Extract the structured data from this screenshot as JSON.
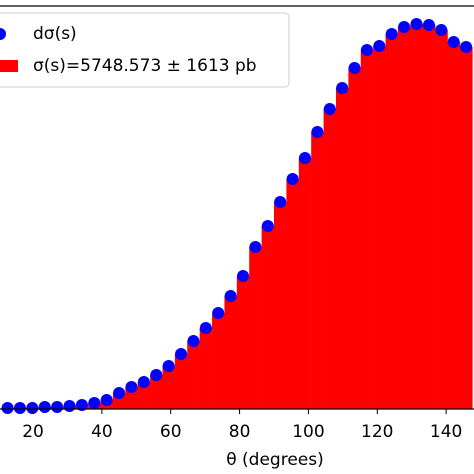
{
  "chart_data": {
    "type": "histogram",
    "xlabel": "θ (degrees)",
    "xlim": [
      10.4,
      148.1
    ],
    "xticks": [
      20,
      40,
      60,
      80,
      100,
      120,
      140
    ],
    "ylim": [
      0,
      100
    ],
    "series": [
      {
        "name": "dσ(s)",
        "type": "scatter",
        "color": "#0000ff",
        "x": [
          12.6,
          16.2,
          19.8,
          23.4,
          27,
          30.6,
          34.2,
          37.8,
          41.4,
          45,
          48.6,
          52.2,
          55.8,
          59.4,
          63,
          66.6,
          70.2,
          73.8,
          77.4,
          81,
          84.6,
          88.2,
          91.8,
          95.4,
          99,
          102.6,
          106.2,
          109.8,
          113.4,
          117,
          120.6,
          124.2,
          127.8,
          131.4,
          135,
          138.6,
          142.2,
          145.8
        ],
        "values": [
          0.25,
          0.25,
          0.25,
          0.5,
          0.5,
          0.74,
          0.99,
          1.49,
          2.23,
          3.97,
          5.46,
          6.7,
          8.44,
          10.67,
          13.65,
          16.87,
          20.1,
          23.82,
          28.04,
          33.0,
          40.2,
          45.41,
          51.36,
          57.07,
          62.28,
          68.73,
          74.44,
          79.65,
          84.62,
          89.08,
          90.07,
          93.05,
          94.79,
          95.53,
          95.29,
          94.04,
          91.07,
          89.83
        ]
      },
      {
        "name": "σ(s)=5748.573 ± 1613 pb",
        "type": "histogram",
        "color": "#ff0000",
        "bins": [
          10.8,
          14.4,
          18,
          21.6,
          25.2,
          28.8,
          32.4,
          36,
          39.6,
          43.2,
          46.8,
          50.4,
          54,
          57.6,
          61.2,
          64.8,
          68.4,
          72,
          75.6,
          79.2,
          82.8,
          86.4,
          90,
          93.6,
          97.2,
          100.8,
          104.4,
          108,
          111.6,
          115.2,
          118.8,
          122.4,
          126,
          129.6,
          133.2,
          136.8,
          140.4,
          144,
          147.6
        ],
        "values": [
          0.25,
          0.25,
          0.25,
          0.5,
          0.5,
          0.74,
          0.99,
          1.49,
          2.23,
          3.97,
          5.46,
          6.7,
          8.44,
          10.67,
          13.65,
          16.87,
          20.1,
          23.82,
          28.04,
          33.0,
          40.2,
          45.41,
          51.36,
          57.07,
          62.28,
          68.73,
          74.44,
          79.65,
          84.62,
          89.08,
          90.07,
          93.05,
          94.79,
          95.53,
          95.29,
          94.04,
          91.07,
          89.83
        ]
      }
    ]
  }
}
